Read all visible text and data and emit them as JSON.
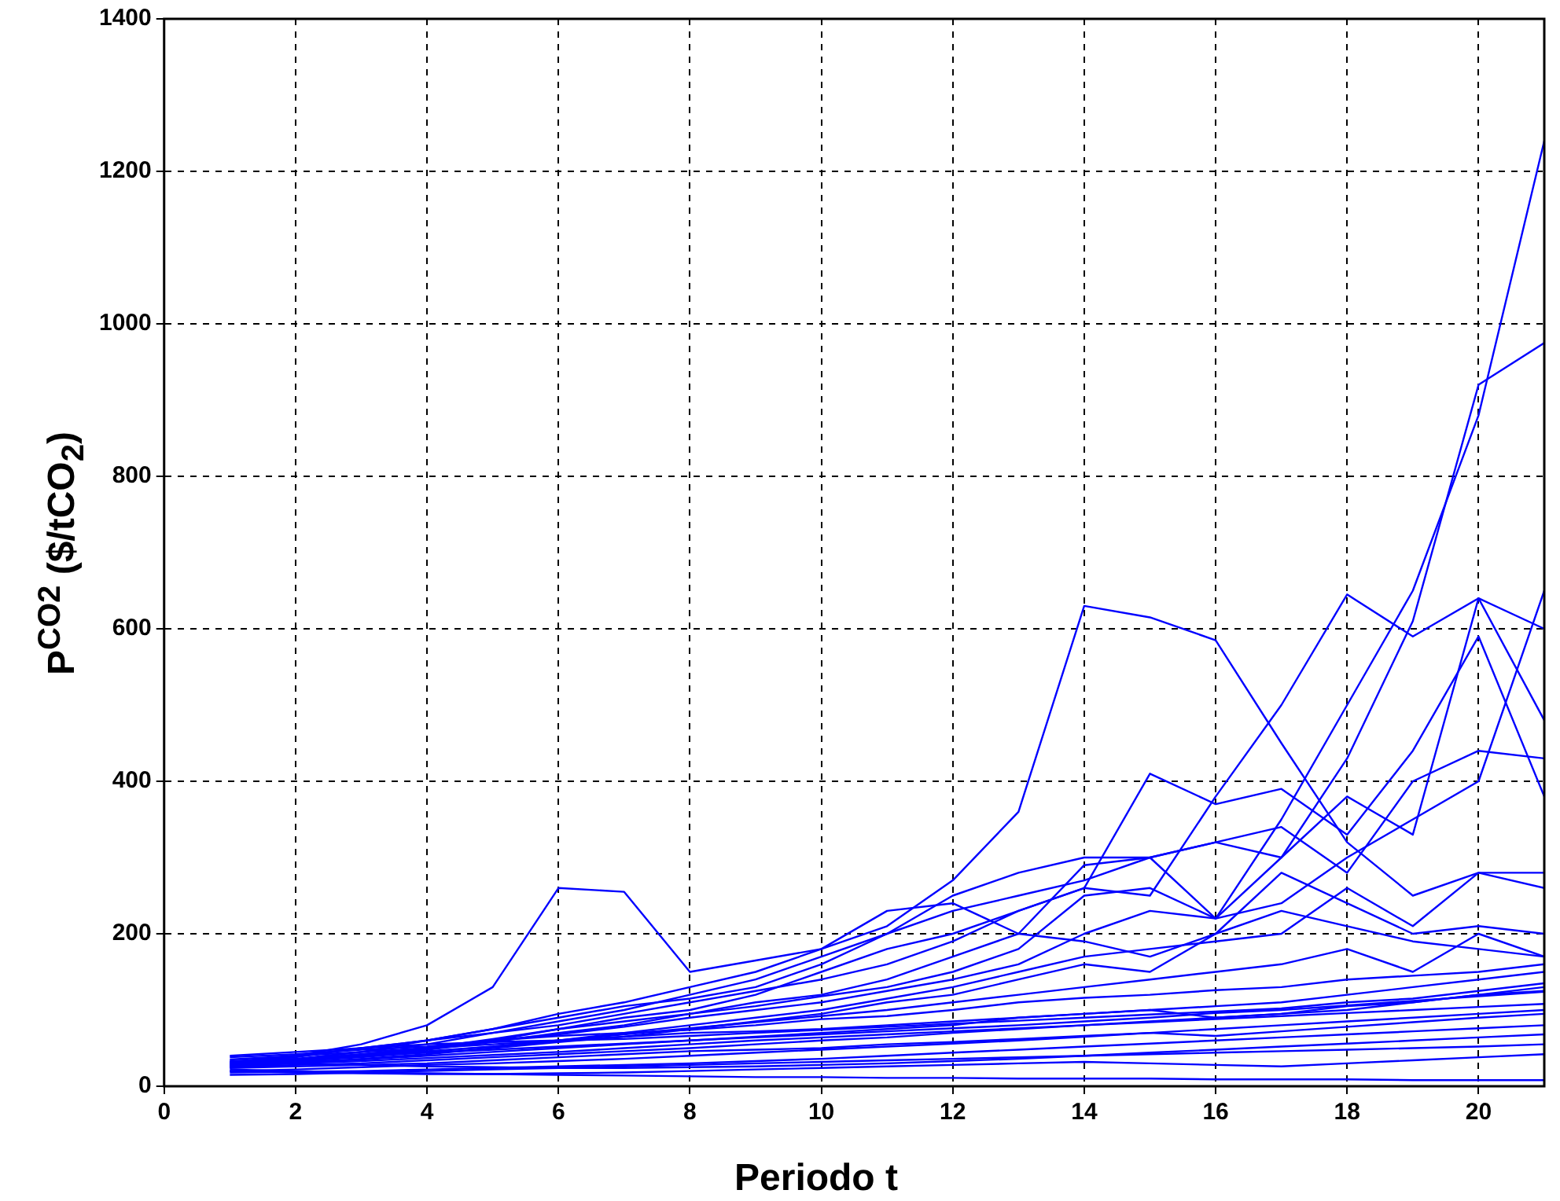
{
  "chart_data": {
    "type": "line",
    "xlabel": "Periodo t",
    "ylabel": "P$^{CO2}$ ($/tCO$_{2}$)",
    "x": [
      1,
      2,
      3,
      4,
      5,
      6,
      7,
      8,
      9,
      10,
      11,
      12,
      13,
      14,
      15,
      16,
      17,
      18,
      19,
      20,
      21
    ],
    "xlim": [
      0,
      21
    ],
    "xticks": [
      0,
      2,
      4,
      6,
      8,
      10,
      12,
      14,
      16,
      18,
      20
    ],
    "ylim": [
      0,
      1400
    ],
    "yticks": [
      0,
      200,
      400,
      600,
      800,
      1000,
      1200,
      1400
    ],
    "grid": true,
    "legend": false,
    "marker": "none",
    "line_style": "solid",
    "series": [
      {
        "color": "#0000ff",
        "values": [
          30,
          40,
          55,
          80,
          130,
          260,
          255,
          150,
          165,
          180,
          230,
          240,
          200,
          190,
          170,
          200,
          230,
          210,
          190,
          180,
          170
        ]
      },
      {
        "color": "#0000ff",
        "values": [
          28,
          35,
          45,
          60,
          75,
          95,
          110,
          130,
          150,
          180,
          210,
          270,
          360,
          630,
          615,
          585,
          450,
          320,
          250,
          280,
          260
        ]
      },
      {
        "color": "#0000ff",
        "values": [
          30,
          38,
          50,
          60,
          70,
          85,
          100,
          120,
          140,
          170,
          200,
          230,
          250,
          270,
          300,
          220,
          350,
          500,
          650,
          880,
          1240
        ]
      },
      {
        "color": "#0000ff",
        "values": [
          32,
          40,
          50,
          60,
          75,
          90,
          105,
          115,
          130,
          160,
          200,
          250,
          280,
          300,
          300,
          320,
          300,
          430,
          610,
          920,
          975
        ]
      },
      {
        "color": "#0000ff",
        "values": [
          25,
          32,
          40,
          50,
          60,
          75,
          90,
          100,
          120,
          150,
          180,
          200,
          230,
          260,
          250,
          380,
          500,
          645,
          590,
          640,
          600
        ]
      },
      {
        "color": "#0000ff",
        "values": [
          30,
          36,
          45,
          55,
          70,
          80,
          95,
          110,
          125,
          140,
          160,
          190,
          230,
          260,
          410,
          370,
          390,
          330,
          440,
          590,
          380
        ]
      },
      {
        "color": "#0000ff",
        "values": [
          28,
          34,
          42,
          50,
          62,
          75,
          85,
          95,
          110,
          120,
          140,
          170,
          200,
          290,
          300,
          320,
          340,
          280,
          400,
          440,
          430
        ]
      },
      {
        "color": "#0000ff",
        "values": [
          27,
          33,
          40,
          48,
          58,
          70,
          80,
          95,
          105,
          118,
          130,
          150,
          180,
          250,
          260,
          220,
          300,
          380,
          330,
          640,
          480
        ]
      },
      {
        "color": "#0000ff",
        "values": [
          30,
          35,
          42,
          50,
          60,
          68,
          78,
          90,
          100,
          110,
          125,
          140,
          160,
          200,
          230,
          220,
          240,
          300,
          350,
          400,
          650
        ]
      },
      {
        "color": "#0000ff",
        "values": [
          28,
          33,
          38,
          45,
          52,
          60,
          70,
          80,
          90,
          100,
          115,
          130,
          150,
          170,
          180,
          190,
          200,
          260,
          210,
          280,
          280
        ]
      },
      {
        "color": "#0000ff",
        "values": [
          26,
          30,
          36,
          42,
          50,
          58,
          65,
          75,
          85,
          95,
          110,
          120,
          140,
          160,
          150,
          200,
          280,
          240,
          200,
          210,
          200
        ]
      },
      {
        "color": "#0000ff",
        "values": [
          29,
          34,
          40,
          46,
          52,
          60,
          68,
          76,
          84,
          92,
          100,
          110,
          120,
          130,
          140,
          150,
          160,
          180,
          150,
          200,
          170
        ]
      },
      {
        "color": "#0000ff",
        "values": [
          30,
          32,
          35,
          40,
          45,
          50,
          55,
          60,
          65,
          70,
          75,
          80,
          90,
          95,
          100,
          105,
          110,
          120,
          130,
          140,
          150
        ]
      },
      {
        "color": "#0000ff",
        "values": [
          25,
          28,
          30,
          34,
          38,
          42,
          46,
          50,
          55,
          60,
          64,
          70,
          75,
          80,
          85,
          90,
          95,
          100,
          110,
          120,
          130
        ]
      },
      {
        "color": "#0000ff",
        "values": [
          20,
          22,
          25,
          28,
          30,
          33,
          36,
          40,
          44,
          48,
          52,
          56,
          60,
          65,
          70,
          75,
          80,
          85,
          90,
          95,
          100
        ]
      },
      {
        "color": "#0000ff",
        "values": [
          35,
          40,
          45,
          50,
          55,
          60,
          62,
          66,
          70,
          74,
          78,
          82,
          86,
          90,
          94,
          98,
          102,
          110,
          115,
          125,
          135
        ]
      },
      {
        "color": "#0000ff",
        "values": [
          15,
          16,
          18,
          20,
          22,
          24,
          26,
          28,
          30,
          32,
          34,
          36,
          38,
          40,
          42,
          44,
          46,
          48,
          50,
          52,
          55
        ]
      },
      {
        "color": "#0000ff",
        "values": [
          22,
          20,
          18,
          17,
          16,
          15,
          14,
          13,
          12,
          12,
          11,
          11,
          10,
          10,
          10,
          9,
          9,
          9,
          8,
          8,
          8
        ]
      },
      {
        "color": "#0000ff",
        "values": [
          40,
          45,
          50,
          55,
          58,
          60,
          65,
          70,
          72,
          75,
          80,
          85,
          90,
          95,
          100,
          90,
          95,
          105,
          110,
          120,
          125
        ]
      },
      {
        "color": "#0000ff",
        "values": [
          18,
          19,
          20,
          22,
          24,
          26,
          28,
          30,
          33,
          36,
          40,
          44,
          48,
          52,
          56,
          60,
          64,
          68,
          72,
          76,
          80
        ]
      },
      {
        "color": "#0000ff",
        "values": [
          32,
          30,
          28,
          26,
          25,
          24,
          24,
          25,
          26,
          28,
          30,
          33,
          36,
          40,
          44,
          48,
          52,
          56,
          60,
          64,
          68
        ]
      },
      {
        "color": "#0000ff",
        "values": [
          24,
          26,
          28,
          30,
          34,
          38,
          42,
          46,
          48,
          50,
          55,
          58,
          62,
          66,
          70,
          66,
          72,
          78,
          84,
          90,
          95
        ]
      },
      {
        "color": "#0000ff",
        "values": [
          38,
          42,
          48,
          52,
          60,
          66,
          70,
          74,
          80,
          88,
          92,
          100,
          110,
          116,
          120,
          126,
          130,
          140,
          145,
          150,
          160
        ]
      },
      {
        "color": "#0000ff",
        "values": [
          20,
          18,
          17,
          16,
          16,
          17,
          18,
          20,
          22,
          24,
          26,
          28,
          30,
          32,
          30,
          28,
          26,
          30,
          34,
          38,
          42
        ]
      },
      {
        "color": "#0000ff",
        "values": [
          27,
          30,
          33,
          37,
          41,
          45,
          50,
          55,
          60,
          64,
          68,
          72,
          76,
          80,
          84,
          88,
          92,
          96,
          100,
          104,
          108
        ]
      },
      {
        "color": "#0000ff",
        "values": [
          33,
          36,
          40,
          44,
          48,
          52,
          56,
          60,
          64,
          68,
          72,
          76,
          80,
          85,
          90,
          96,
          100,
          106,
          112,
          118,
          124
        ]
      }
    ]
  }
}
